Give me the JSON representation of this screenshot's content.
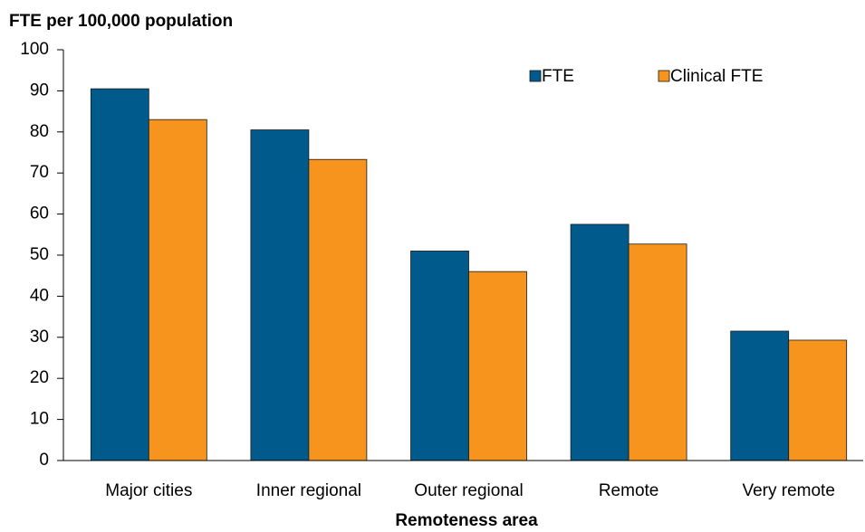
{
  "chart_data": {
    "type": "bar",
    "title": "FTE per 100,000 population",
    "x_label": "Remoteness area",
    "categories": [
      "Major cities",
      "Inner regional",
      "Outer regional",
      "Remote",
      "Very remote"
    ],
    "series": [
      {
        "name": "FTE",
        "color": "#005a8c",
        "values": [
          90.5,
          80.5,
          51,
          57.5,
          31.5
        ]
      },
      {
        "name": "Clinical FTE",
        "color": "#f7941d",
        "values": [
          83,
          73.3,
          46,
          52.7,
          29.3
        ]
      }
    ],
    "ylim": [
      0,
      100
    ],
    "yticks": [
      0,
      10,
      20,
      30,
      40,
      50,
      60,
      70,
      80,
      90,
      100
    ],
    "grid": false,
    "legend": "top-right"
  }
}
